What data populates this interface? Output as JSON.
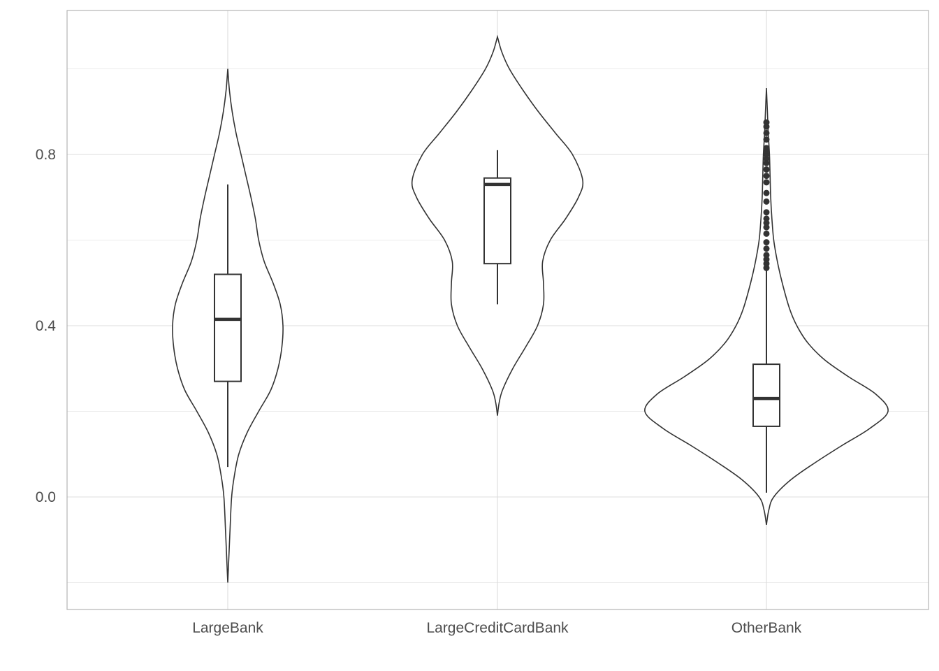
{
  "chart_data": {
    "type": "violin",
    "title": "",
    "xlabel": "",
    "ylabel": "",
    "ylim": [
      -0.26,
      1.1
    ],
    "y_ticks": [
      "0.0",
      "0.4",
      "0.8"
    ],
    "y_tick_values": [
      0.0,
      0.4,
      0.8
    ],
    "grid": true,
    "categories": [
      "LargeBank",
      "LargeCreditCardBank",
      "OtherBank"
    ],
    "series": [
      {
        "category": "LargeBank",
        "violin_range": [
          -0.2,
          1.0
        ],
        "density": [
          [
            -0.2,
            0.0
          ],
          [
            -0.14,
            0.02
          ],
          [
            -0.08,
            0.04
          ],
          [
            0.0,
            0.07
          ],
          [
            0.05,
            0.12
          ],
          [
            0.1,
            0.2
          ],
          [
            0.15,
            0.35
          ],
          [
            0.2,
            0.56
          ],
          [
            0.25,
            0.78
          ],
          [
            0.3,
            0.91
          ],
          [
            0.35,
            0.98
          ],
          [
            0.4,
            1.0
          ],
          [
            0.45,
            0.95
          ],
          [
            0.5,
            0.82
          ],
          [
            0.55,
            0.66
          ],
          [
            0.6,
            0.56
          ],
          [
            0.65,
            0.5
          ],
          [
            0.7,
            0.42
          ],
          [
            0.75,
            0.33
          ],
          [
            0.8,
            0.24
          ],
          [
            0.85,
            0.15
          ],
          [
            0.9,
            0.08
          ],
          [
            0.95,
            0.03
          ],
          [
            1.0,
            0.0
          ]
        ],
        "box": {
          "whisker_low": 0.07,
          "q1": 0.27,
          "median": 0.415,
          "q3": 0.52,
          "whisker_high": 0.73
        },
        "outliers": []
      },
      {
        "category": "LargeCreditCardBank",
        "violin_range": [
          0.19,
          1.075
        ],
        "density": [
          [
            0.19,
            0.0
          ],
          [
            0.22,
            0.02
          ],
          [
            0.25,
            0.06
          ],
          [
            0.3,
            0.18
          ],
          [
            0.35,
            0.33
          ],
          [
            0.4,
            0.47
          ],
          [
            0.45,
            0.54
          ],
          [
            0.5,
            0.54
          ],
          [
            0.55,
            0.53
          ],
          [
            0.6,
            0.62
          ],
          [
            0.65,
            0.8
          ],
          [
            0.7,
            0.95
          ],
          [
            0.74,
            1.0
          ],
          [
            0.8,
            0.88
          ],
          [
            0.85,
            0.68
          ],
          [
            0.9,
            0.48
          ],
          [
            0.95,
            0.3
          ],
          [
            1.0,
            0.14
          ],
          [
            1.04,
            0.05
          ],
          [
            1.075,
            0.0
          ]
        ],
        "box": {
          "whisker_low": 0.45,
          "q1": 0.545,
          "median": 0.73,
          "q3": 0.745,
          "whisker_high": 0.81
        },
        "outliers": []
      },
      {
        "category": "OtherBank",
        "violin_range": [
          -0.065,
          0.955
        ],
        "density": [
          [
            -0.065,
            0.0
          ],
          [
            -0.03,
            0.02
          ],
          [
            0.0,
            0.06
          ],
          [
            0.04,
            0.2
          ],
          [
            0.08,
            0.4
          ],
          [
            0.12,
            0.62
          ],
          [
            0.16,
            0.85
          ],
          [
            0.2,
            1.0
          ],
          [
            0.24,
            0.9
          ],
          [
            0.28,
            0.68
          ],
          [
            0.32,
            0.48
          ],
          [
            0.36,
            0.34
          ],
          [
            0.4,
            0.25
          ],
          [
            0.44,
            0.19
          ],
          [
            0.5,
            0.13
          ],
          [
            0.55,
            0.09
          ],
          [
            0.6,
            0.06
          ],
          [
            0.65,
            0.045
          ],
          [
            0.7,
            0.035
          ],
          [
            0.75,
            0.03
          ],
          [
            0.8,
            0.025
          ],
          [
            0.85,
            0.015
          ],
          [
            0.9,
            0.008
          ],
          [
            0.955,
            0.0
          ]
        ],
        "box": {
          "whisker_low": 0.01,
          "q1": 0.165,
          "median": 0.23,
          "q3": 0.31,
          "whisker_high": 0.53
        },
        "outliers": [
          0.535,
          0.545,
          0.555,
          0.565,
          0.58,
          0.595,
          0.615,
          0.63,
          0.64,
          0.65,
          0.665,
          0.69,
          0.71,
          0.735,
          0.75,
          0.765,
          0.78,
          0.79,
          0.8,
          0.81,
          0.815,
          0.835,
          0.85,
          0.865,
          0.875
        ]
      }
    ]
  }
}
